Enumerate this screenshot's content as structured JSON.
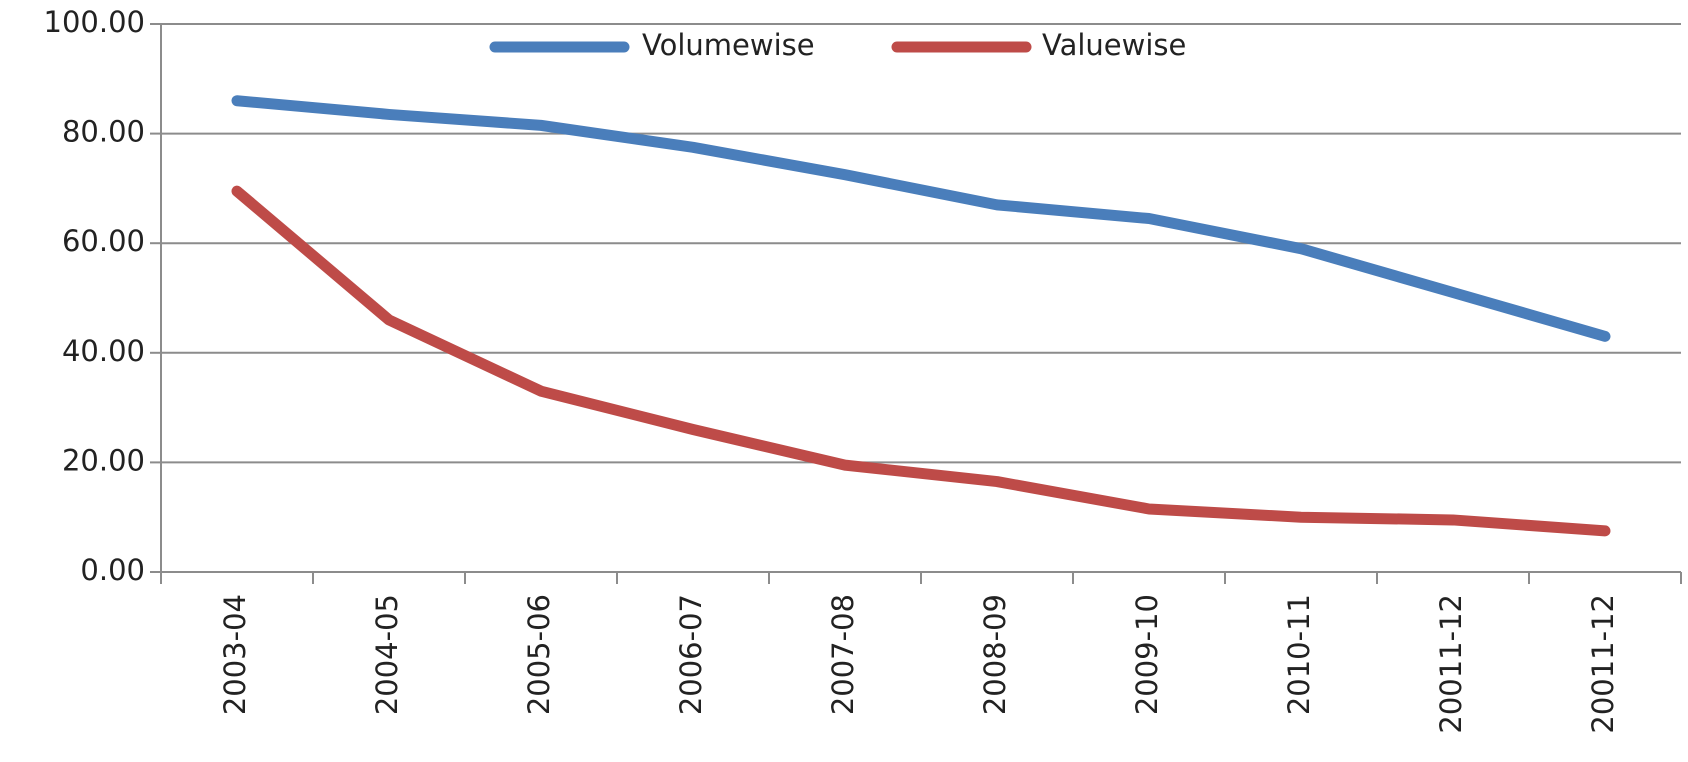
{
  "chart_data": {
    "type": "line",
    "categories": [
      "2003-04",
      "2004-05",
      "2005-06",
      "2006-07",
      "2007-08",
      "2008-09",
      "2009-10",
      "2010-11",
      "20011-12",
      "20011-12"
    ],
    "series": [
      {
        "name": "Volumewise",
        "color": "#4a7ebb",
        "values": [
          86,
          83.5,
          81.5,
          77.5,
          72.5,
          67,
          64.5,
          59,
          51,
          43
        ]
      },
      {
        "name": "Valuewise",
        "color": "#be4b48",
        "values": [
          69.5,
          46,
          33,
          26,
          19.5,
          16.5,
          11.5,
          10,
          9.5,
          7.5
        ]
      }
    ],
    "ylim": [
      0,
      100
    ],
    "yticks": [
      {
        "value": 0,
        "label": "0.00"
      },
      {
        "value": 20,
        "label": "20.00"
      },
      {
        "value": 40,
        "label": "40.00"
      },
      {
        "value": 60,
        "label": "60.00"
      },
      {
        "value": 80,
        "label": "80.00"
      },
      {
        "value": 100,
        "label": "100.00"
      }
    ],
    "grid": true,
    "legend": "top"
  }
}
